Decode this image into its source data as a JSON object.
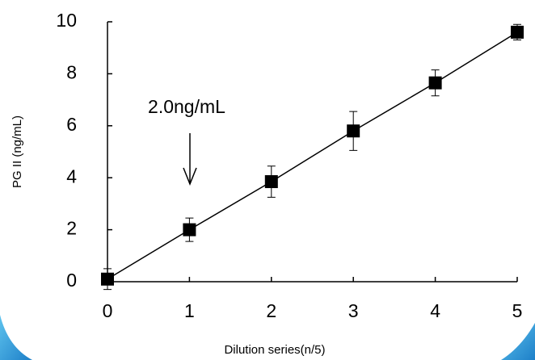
{
  "chart_data": {
    "type": "scatter",
    "x_label": "Dilution series(n/5)",
    "y_label": "PG II (ng/mL)",
    "annotation": "2.0ng/mL",
    "x": [
      0,
      1,
      2,
      3,
      4,
      5
    ],
    "series": [
      {
        "color": "#000000",
        "values": [
          0.1,
          2.0,
          3.85,
          5.8,
          7.65,
          9.6
        ],
        "errors": [
          0.4,
          0.45,
          0.6,
          0.75,
          0.5,
          0.3
        ]
      }
    ],
    "xlim": [
      0,
      5
    ],
    "xticks": [
      0,
      1,
      2,
      3,
      4,
      5
    ],
    "ylim": [
      0,
      10
    ],
    "yticks": [
      0,
      2,
      4,
      6,
      8,
      10
    ]
  }
}
